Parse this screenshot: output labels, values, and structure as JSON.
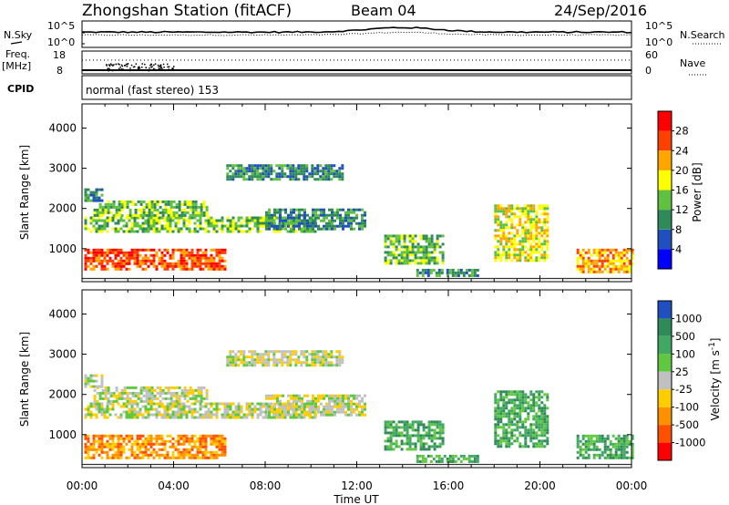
{
  "header": {
    "station": "Zhongshan Station (fitACF)",
    "beam": "Beam 04",
    "date": "24/Sep/2016"
  },
  "panels_top": {
    "nsky_label": "N.Sky",
    "nsky_ticks": [
      "10^5",
      "10^0"
    ],
    "nsearch_label": "N.Search",
    "nsearch_ticks": [
      "10^5",
      "10^0"
    ],
    "freq_label_1": "Freq.",
    "freq_label_2": "[MHz]",
    "freq_ticks": [
      "18",
      "8"
    ],
    "nave_label": "Nave",
    "nave_ticks": [
      "60",
      "0"
    ],
    "cpid_label": "CPID",
    "cpid_text": "normal (fast stereo) 153"
  },
  "chart_data": [
    {
      "type": "heatmap",
      "name": "power",
      "xlabel": "",
      "ylabel": "Slant Range [km]",
      "x_ticks": [
        "00:00",
        "04:00",
        "08:00",
        "12:00",
        "16:00",
        "20:00",
        "00:00"
      ],
      "y_ticks": [
        1000,
        2000,
        3000,
        4000
      ],
      "ylim": [
        180,
        4600
      ],
      "colorbar": {
        "label": "Power [dB]",
        "ticks": [
          "4",
          "8",
          "12",
          "16",
          "20",
          "24",
          "28"
        ],
        "colors": [
          "#0000ff",
          "#2050c0",
          "#2e8b57",
          "#60c040",
          "#ffff00",
          "#ffa500",
          "#ff4000",
          "#ff0000"
        ]
      },
      "regions": [
        {
          "t": [
            0.1,
            6.2
          ],
          "r": [
            500,
            1000
          ],
          "level": 6
        },
        {
          "t": [
            0.1,
            10.2
          ],
          "r": [
            1400,
            1800
          ],
          "level": 3
        },
        {
          "t": [
            0.5,
            5.5
          ],
          "r": [
            1850,
            2200
          ],
          "level": 3
        },
        {
          "t": [
            0.1,
            0.9
          ],
          "r": [
            2200,
            2500
          ],
          "level": 2
        },
        {
          "t": [
            6.3,
            11.4
          ],
          "r": [
            2700,
            3100
          ],
          "level": 2
        },
        {
          "t": [
            8.0,
            12.4
          ],
          "r": [
            1500,
            2000
          ],
          "level": 2
        },
        {
          "t": [
            13.2,
            15.8
          ],
          "r": [
            650,
            1350
          ],
          "level": 3
        },
        {
          "t": [
            14.6,
            17.3
          ],
          "r": [
            350,
            500
          ],
          "level": 2
        },
        {
          "t": [
            18.0,
            20.3
          ],
          "r": [
            700,
            2100
          ],
          "level": 4
        },
        {
          "t": [
            21.6,
            24.0
          ],
          "r": [
            450,
            1000
          ],
          "level": 5
        }
      ]
    },
    {
      "type": "heatmap",
      "name": "velocity",
      "xlabel": "Time UT",
      "ylabel": "Slant Range [km]",
      "x_ticks": [
        "00:00",
        "04:00",
        "08:00",
        "12:00",
        "16:00",
        "20:00",
        "00:00"
      ],
      "y_ticks": [
        1000,
        2000,
        3000,
        4000
      ],
      "ylim": [
        180,
        4600
      ],
      "colorbar": {
        "label": "Velocity [m s^-1]",
        "ticks": [
          "1000",
          "500",
          "100",
          "25",
          "-25",
          "-100",
          "-500",
          "-1000"
        ],
        "colors": [
          "#2050c0",
          "#2e8b57",
          "#40a860",
          "#60c840",
          "#c0c0c0",
          "#ffcc00",
          "#ff9000",
          "#ff5000",
          "#ff0000"
        ]
      },
      "regions": [
        {
          "t": [
            0.1,
            6.2
          ],
          "r": [
            450,
            1000
          ],
          "level": 6
        },
        {
          "t": [
            0.1,
            10.2
          ],
          "r": [
            1400,
            1800
          ],
          "level": 4
        },
        {
          "t": [
            0.5,
            5.5
          ],
          "r": [
            1850,
            2200
          ],
          "level": 4
        },
        {
          "t": [
            0.1,
            0.9
          ],
          "r": [
            2200,
            2500
          ],
          "level": 4
        },
        {
          "t": [
            6.3,
            11.4
          ],
          "r": [
            2700,
            3100
          ],
          "level": 4
        },
        {
          "t": [
            8.0,
            12.4
          ],
          "r": [
            1500,
            2000
          ],
          "level": 4
        },
        {
          "t": [
            13.2,
            15.8
          ],
          "r": [
            650,
            1350
          ],
          "level": 2
        },
        {
          "t": [
            14.6,
            17.3
          ],
          "r": [
            350,
            500
          ],
          "level": 2
        },
        {
          "t": [
            18.0,
            20.3
          ],
          "r": [
            700,
            2100
          ],
          "level": 2
        },
        {
          "t": [
            21.6,
            24.0
          ],
          "r": [
            450,
            1000
          ],
          "level": 2
        }
      ]
    }
  ]
}
